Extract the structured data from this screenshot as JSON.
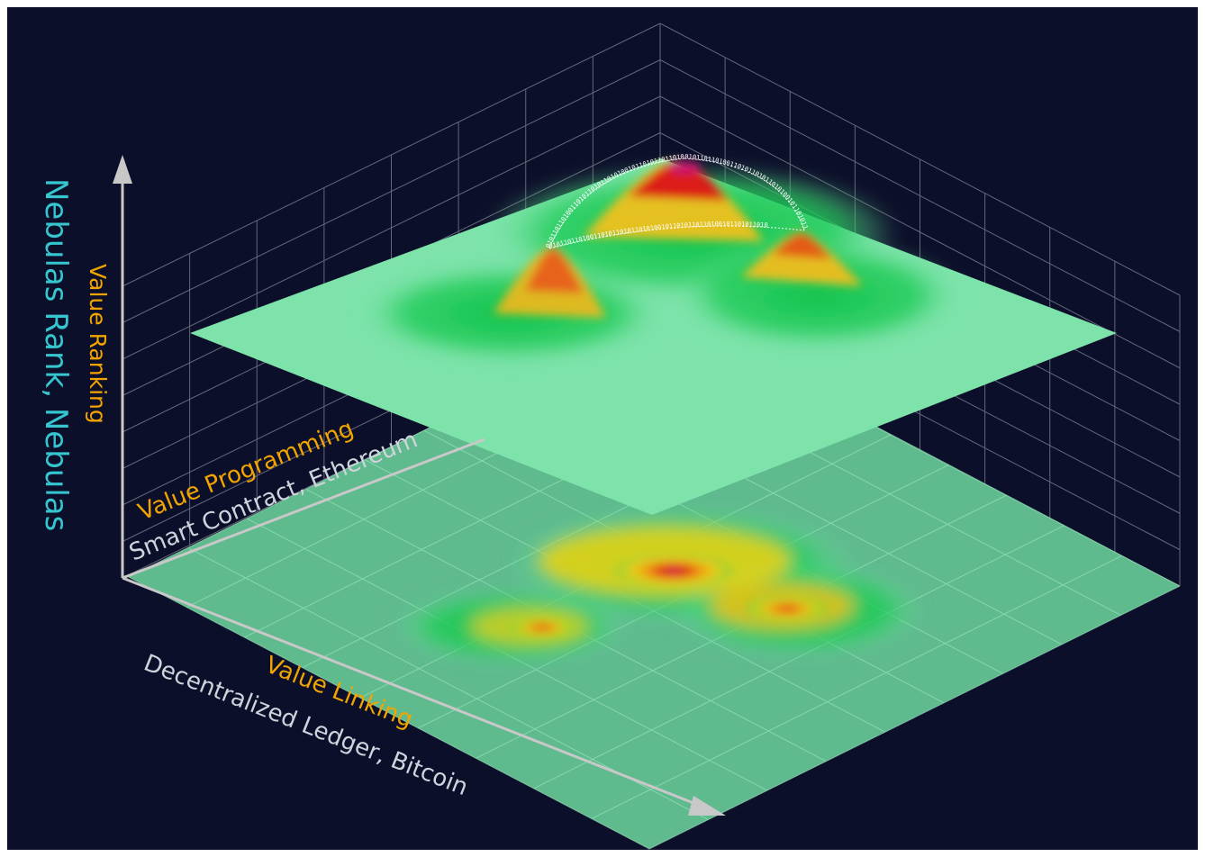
{
  "colors": {
    "background": "#0c0f2a",
    "axis": "#c8c8c8",
    "grid": "#8a8d9a",
    "title_highlight": "#f2a500",
    "y_axis_label": "#35c6cf",
    "sub_label": "#cfd3dc",
    "surface_base": "#7de3aa",
    "peak_low": "#16c64a",
    "peak_mid": "#f0c418",
    "peak_high": "#e01818",
    "peak_top": "#d4157a"
  },
  "y_axis": {
    "title": "Nebulas Rank, Nebulas",
    "subtitle": "Value Ranking"
  },
  "depth_axis": {
    "title": "Value Programming",
    "subtitle": "Smart Contract, Ethereum"
  },
  "x_axis": {
    "title": "Value Linking",
    "subtitle": "Decentralized Ledger, Bitcoin"
  },
  "binary_text": "0101101101001101011010110101001011010110110100101101011010"
}
